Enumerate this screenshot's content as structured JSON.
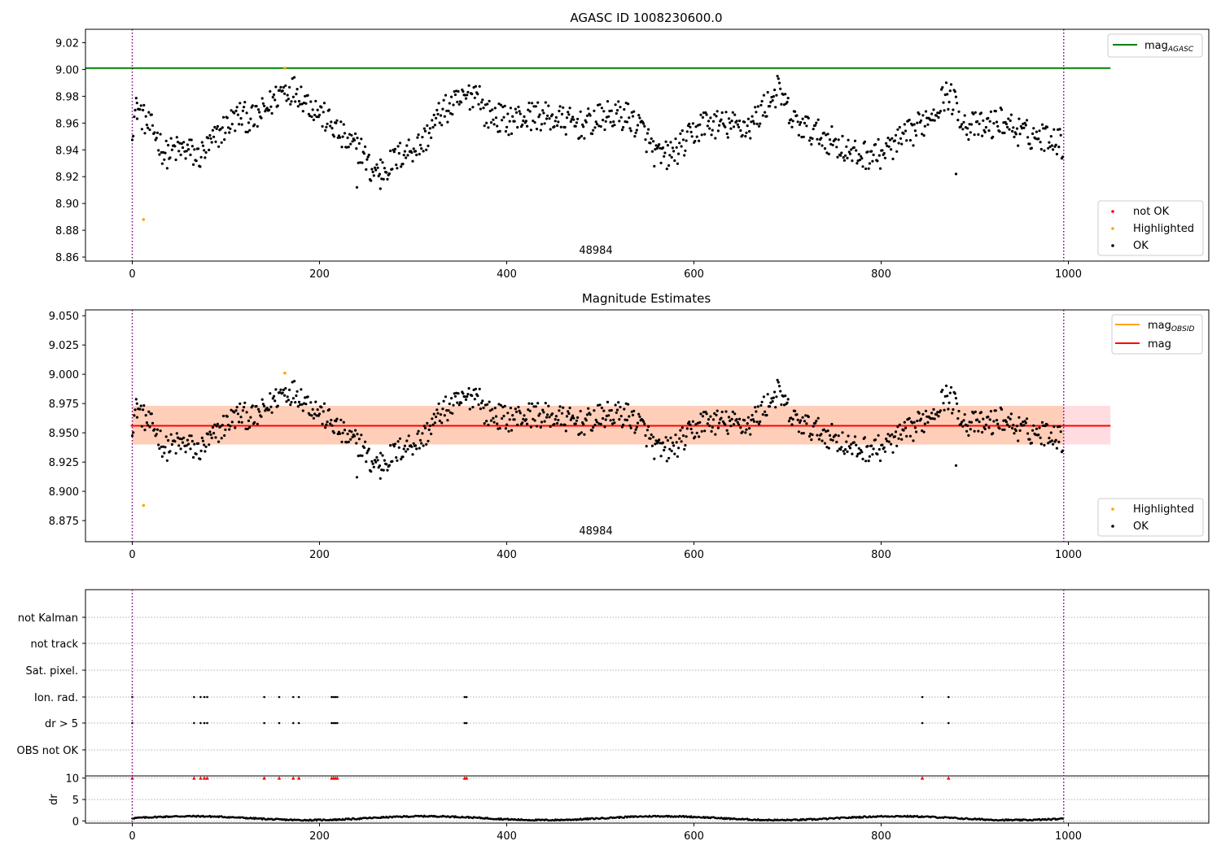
{
  "chart_data": [
    {
      "type": "scatter",
      "title": "AGASC ID 1008230600.0",
      "xlim": [
        -50,
        1150
      ],
      "ylim": [
        8.857,
        9.03
      ],
      "x_ticks": [
        0,
        200,
        400,
        600,
        800,
        1000
      ],
      "y_ticks": [
        8.86,
        8.88,
        8.9,
        8.92,
        8.94,
        8.96,
        8.98,
        9.0,
        9.02
      ],
      "grid": false,
      "reference_line": {
        "label": "mag",
        "subscript": "AGASC",
        "value": 9.001,
        "x_range": [
          0,
          1045
        ],
        "color": "#008000"
      },
      "vlines": [
        0,
        995
      ],
      "annotation": {
        "text": "48984",
        "x": 497
      },
      "legend_upper": {
        "placement": "top-right",
        "entries": [
          {
            "label": "mag",
            "subscript": "AGASC",
            "color": "#008000"
          }
        ]
      },
      "legend_lower": {
        "placement": "bottom-right",
        "entries": [
          {
            "label": "not OK",
            "color": "#ff0000"
          },
          {
            "label": "Highlighted",
            "color": "#ffa500"
          },
          {
            "label": "OK",
            "color": "#000000"
          }
        ]
      },
      "highlighted_points": [
        {
          "x": 12,
          "y": 8.888
        },
        {
          "x": 163,
          "y": 9.001
        }
      ],
      "ok_series_anchors": [
        [
          0,
          8.958
        ],
        [
          5,
          8.972
        ],
        [
          15,
          8.96
        ],
        [
          25,
          8.952
        ],
        [
          35,
          8.936
        ],
        [
          45,
          8.94
        ],
        [
          60,
          8.94
        ],
        [
          70,
          8.934
        ],
        [
          85,
          8.945
        ],
        [
          100,
          8.958
        ],
        [
          115,
          8.966
        ],
        [
          130,
          8.962
        ],
        [
          145,
          8.972
        ],
        [
          160,
          8.985
        ],
        [
          175,
          8.985
        ],
        [
          190,
          8.974
        ],
        [
          200,
          8.968
        ],
        [
          215,
          8.957
        ],
        [
          230,
          8.945
        ],
        [
          245,
          8.94
        ],
        [
          255,
          8.924
        ],
        [
          270,
          8.926
        ],
        [
          290,
          8.938
        ],
        [
          310,
          8.945
        ],
        [
          330,
          8.968
        ],
        [
          355,
          8.978
        ],
        [
          370,
          8.985
        ],
        [
          375,
          8.968
        ],
        [
          400,
          8.962
        ],
        [
          430,
          8.966
        ],
        [
          460,
          8.962
        ],
        [
          480,
          8.958
        ],
        [
          510,
          8.966
        ],
        [
          530,
          8.965
        ],
        [
          545,
          8.955
        ],
        [
          560,
          8.935
        ],
        [
          575,
          8.936
        ],
        [
          590,
          8.945
        ],
        [
          610,
          8.96
        ],
        [
          640,
          8.958
        ],
        [
          660,
          8.958
        ],
        [
          680,
          8.976
        ],
        [
          690,
          8.985
        ],
        [
          705,
          8.962
        ],
        [
          725,
          8.954
        ],
        [
          750,
          8.946
        ],
        [
          770,
          8.936
        ],
        [
          800,
          8.937
        ],
        [
          815,
          8.944
        ],
        [
          835,
          8.954
        ],
        [
          855,
          8.968
        ],
        [
          870,
          8.982
        ],
        [
          880,
          8.974
        ],
        [
          890,
          8.958
        ],
        [
          910,
          8.957
        ],
        [
          930,
          8.962
        ],
        [
          950,
          8.952
        ],
        [
          970,
          8.95
        ],
        [
          985,
          8.95
        ],
        [
          995,
          8.942
        ]
      ]
    },
    {
      "type": "scatter",
      "title": "Magnitude Estimates",
      "xlim": [
        -50,
        1150
      ],
      "ylim": [
        8.857,
        9.055
      ],
      "x_ticks": [
        0,
        200,
        400,
        600,
        800,
        1000
      ],
      "y_ticks": [
        8.875,
        8.9,
        8.925,
        8.95,
        8.975,
        9.0,
        9.025,
        9.05
      ],
      "grid": false,
      "mean_line": {
        "label": "mag",
        "value": 8.956,
        "x_range": [
          0,
          1045
        ],
        "color": "#ff0000"
      },
      "obsid_line": {
        "label": "mag",
        "subscript": "OBSID",
        "value": 8.956,
        "color": "#ffa500"
      },
      "band_outer": [
        8.94,
        8.973
      ],
      "band_inner": [
        8.94,
        8.973
      ],
      "vlines": [
        0,
        995
      ],
      "annotation": {
        "text": "48984",
        "x": 497
      },
      "legend_upper": {
        "placement": "top-right",
        "entries": [
          {
            "label": "mag",
            "subscript": "OBSID",
            "color": "#ffa500"
          },
          {
            "label": "mag",
            "color": "#ff0000"
          }
        ]
      },
      "legend_lower": {
        "placement": "bottom-right",
        "entries": [
          {
            "label": "Highlighted",
            "color": "#ffa500"
          },
          {
            "label": "OK",
            "color": "#000000"
          }
        ]
      }
    },
    {
      "type": "scatter",
      "title": "",
      "xlim": [
        -50,
        1150
      ],
      "x_ticks": [
        0,
        200,
        400,
        600,
        800,
        1000
      ],
      "flag_rows": [
        "not Kalman",
        "not track",
        "Sat. pixel.",
        "Ion. rad.",
        "dr > 5",
        "OBS not OK"
      ],
      "flag_points": {
        "Ion. rad.": [
          0,
          66,
          73,
          77,
          80,
          141,
          157,
          172,
          178,
          213,
          215,
          217,
          219,
          355,
          357,
          844,
          872
        ],
        "dr > 5": [
          0,
          66,
          73,
          77,
          80,
          141,
          157,
          172,
          178,
          213,
          215,
          217,
          219,
          355,
          357,
          844,
          872
        ]
      },
      "vlines": [
        0,
        995
      ]
    },
    {
      "type": "scatter",
      "title": "",
      "ylabel": "dr",
      "xlim": [
        -50,
        1150
      ],
      "ylim": [
        -0.5,
        10.5
      ],
      "x_ticks": [
        0,
        200,
        400,
        600,
        800,
        1000
      ],
      "y_ticks": [
        0,
        5,
        10
      ],
      "clipped_markers_x": [
        0,
        66,
        73,
        77,
        80,
        141,
        157,
        172,
        178,
        213,
        215,
        217,
        219,
        355,
        357,
        844,
        872
      ],
      "clipped_value": 10,
      "vlines": [
        0,
        995
      ]
    }
  ]
}
